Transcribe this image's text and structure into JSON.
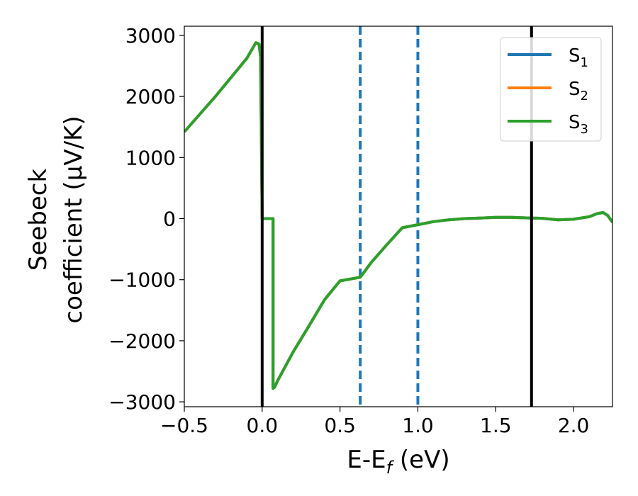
{
  "chart_data": {
    "type": "line",
    "xlabel_main": "E-E",
    "xlabel_sub": "f",
    "xlabel_unit": " (eV)",
    "ylabel_line1": "Seebeck",
    "ylabel_line2": "coefficient  (μV/K)",
    "xlim": [
      -0.5,
      2.25
    ],
    "ylim": [
      -3080,
      3150
    ],
    "xticks": [
      -0.5,
      0.0,
      0.5,
      1.0,
      1.5,
      2.0
    ],
    "xtick_labels": [
      "−0.5",
      "0.0",
      "0.5",
      "1.0",
      "1.5",
      "2.0"
    ],
    "yticks": [
      -3000,
      -2000,
      -1000,
      0,
      1000,
      2000,
      3000
    ],
    "ytick_labels": [
      "−3000",
      "−2000",
      "−1000",
      "0",
      "1000",
      "2000",
      "3000"
    ],
    "grid": false,
    "legend_position": "top-right",
    "vlines_solid": [
      0.0,
      1.73
    ],
    "vlines_dashed": [
      0.63,
      1.0
    ],
    "series": [
      {
        "name": "S",
        "subscript": "1",
        "color": "#1f77b4",
        "x": [
          -0.5,
          -0.3,
          -0.1,
          -0.04,
          -0.02,
          -0.01,
          0.0,
          0.005,
          0.07,
          0.07,
          0.08,
          0.1,
          0.2,
          0.3,
          0.4,
          0.5,
          0.63,
          0.7,
          0.8,
          0.9,
          1.0,
          1.1,
          1.2,
          1.3,
          1.4,
          1.5,
          1.6,
          1.73,
          1.8,
          1.9,
          2.0,
          2.1,
          2.15,
          2.19,
          2.22,
          2.25
        ],
        "y": [
          1420,
          2000,
          2620,
          2880,
          2860,
          2650,
          0,
          0,
          0,
          -2780,
          -2760,
          -2650,
          -2180,
          -1760,
          -1330,
          -1020,
          -960,
          -720,
          -430,
          -150,
          -100,
          -50,
          -20,
          0,
          10,
          20,
          20,
          10,
          5,
          -20,
          -10,
          30,
          80,
          100,
          50,
          -60
        ]
      },
      {
        "name": "S",
        "subscript": "2",
        "color": "#ff7f0e",
        "x": [
          -0.5,
          -0.3,
          -0.1,
          -0.04,
          -0.02,
          -0.01,
          0.0,
          0.005,
          0.07,
          0.07,
          0.08,
          0.1,
          0.2,
          0.3,
          0.4,
          0.5,
          0.63,
          0.7,
          0.8,
          0.9,
          1.0,
          1.1,
          1.2,
          1.3,
          1.4,
          1.5,
          1.6,
          1.73,
          1.8,
          1.9,
          2.0,
          2.1,
          2.15,
          2.19,
          2.22,
          2.25
        ],
        "y": [
          1420,
          2000,
          2620,
          2880,
          2860,
          2650,
          0,
          0,
          0,
          -2780,
          -2760,
          -2650,
          -2180,
          -1760,
          -1330,
          -1020,
          -960,
          -720,
          -430,
          -150,
          -100,
          -50,
          -20,
          0,
          10,
          20,
          20,
          10,
          5,
          -20,
          -10,
          30,
          80,
          100,
          50,
          -60
        ]
      },
      {
        "name": "S",
        "subscript": "3",
        "color": "#2ca02c",
        "x": [
          -0.5,
          -0.3,
          -0.1,
          -0.04,
          -0.02,
          -0.01,
          0.0,
          0.005,
          0.07,
          0.07,
          0.08,
          0.1,
          0.2,
          0.3,
          0.4,
          0.5,
          0.63,
          0.7,
          0.8,
          0.9,
          1.0,
          1.1,
          1.2,
          1.3,
          1.4,
          1.5,
          1.6,
          1.73,
          1.8,
          1.9,
          2.0,
          2.1,
          2.15,
          2.19,
          2.22,
          2.25
        ],
        "y": [
          1420,
          2000,
          2620,
          2880,
          2860,
          2650,
          0,
          0,
          0,
          -2780,
          -2760,
          -2650,
          -2180,
          -1760,
          -1330,
          -1020,
          -960,
          -720,
          -430,
          -150,
          -100,
          -50,
          -20,
          0,
          10,
          20,
          20,
          10,
          5,
          -20,
          -10,
          30,
          80,
          100,
          50,
          -60
        ]
      }
    ],
    "colors": {
      "solid_vline": "#000000",
      "dashed_vline": "#1f77b4",
      "axis": "#000000"
    }
  }
}
